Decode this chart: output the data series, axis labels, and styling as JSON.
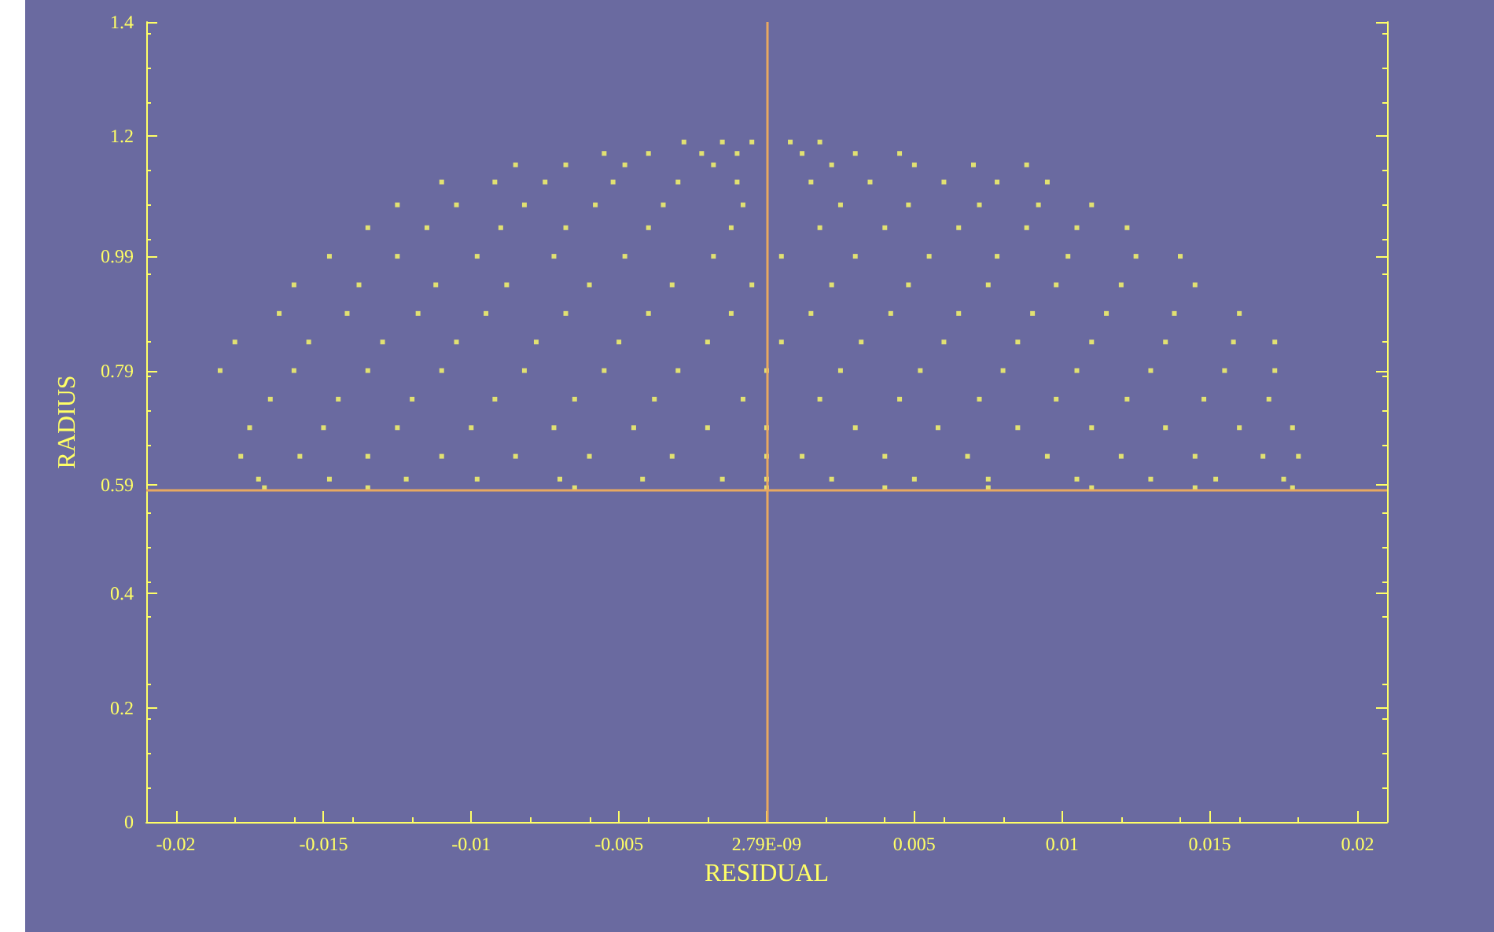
{
  "chart_data": {
    "type": "scatter",
    "xlabel": "RESIDUAL",
    "ylabel": "RADIUS",
    "xlim": [
      -0.021,
      0.021
    ],
    "xticks": [
      -0.02,
      -0.015,
      -0.01,
      -0.005,
      {
        "value": 2.79e-09,
        "label": "2.79E-09"
      },
      0.005,
      0.01,
      0.015,
      0.02
    ],
    "ylim": [
      0,
      1.4
    ],
    "yticks": [
      0,
      0.2,
      0.4,
      0.59,
      0.79,
      0.99,
      1.2,
      1.4
    ],
    "marker": "square",
    "ref_lines": [
      {
        "axis": "x",
        "value": 0,
        "color": "#e8a860"
      },
      {
        "axis": "y",
        "value": 0.58,
        "color": "#e8a860"
      }
    ],
    "series": [
      {
        "color": "#ffff66",
        "x": [
          -0.0028,
          -0.0015,
          -0.0005,
          0.0008,
          0.0018,
          -0.0055,
          -0.004,
          -0.0022,
          -0.001,
          0.0012,
          0.003,
          0.0045,
          -0.0085,
          -0.0068,
          -0.0048,
          -0.0018,
          0.0022,
          0.005,
          0.007,
          0.0088,
          -0.011,
          -0.0092,
          -0.0075,
          -0.0052,
          -0.003,
          -0.001,
          0.0015,
          0.0035,
          0.006,
          0.0078,
          0.0095,
          -0.0125,
          -0.0105,
          -0.0082,
          -0.0058,
          -0.0035,
          -0.0008,
          0.0025,
          0.0048,
          0.0072,
          0.0092,
          0.011,
          -0.0135,
          -0.0115,
          -0.009,
          -0.0068,
          -0.004,
          -0.0012,
          0.0018,
          0.004,
          0.0065,
          0.0088,
          0.0105,
          0.0122,
          -0.0148,
          -0.0125,
          -0.0098,
          -0.0072,
          -0.0048,
          -0.0018,
          0.0005,
          0.003,
          0.0055,
          0.0078,
          0.0102,
          0.0125,
          0.014,
          -0.016,
          -0.0138,
          -0.0112,
          -0.0088,
          -0.006,
          -0.0032,
          -0.0005,
          0.0022,
          0.0048,
          0.0075,
          0.0098,
          0.012,
          0.0145,
          -0.0165,
          -0.0142,
          -0.0118,
          -0.0095,
          -0.0068,
          -0.004,
          -0.0012,
          0.0015,
          0.0042,
          0.0065,
          0.009,
          0.0115,
          0.0138,
          0.016,
          -0.018,
          -0.0155,
          -0.013,
          -0.0105,
          -0.0078,
          -0.005,
          -0.002,
          0.0005,
          0.0032,
          0.006,
          0.0085,
          0.011,
          0.0135,
          0.0158,
          0.0172,
          -0.0185,
          -0.016,
          -0.0135,
          -0.011,
          -0.0082,
          -0.0055,
          -0.003,
          0,
          0.0025,
          0.0052,
          0.008,
          0.0105,
          0.013,
          0.0155,
          0.0172,
          -0.0168,
          -0.0145,
          -0.012,
          -0.0092,
          -0.0065,
          -0.0038,
          -0.0008,
          0.0018,
          0.0045,
          0.0072,
          0.0098,
          0.0122,
          0.0148,
          0.017,
          -0.0175,
          -0.015,
          -0.0125,
          -0.01,
          -0.0072,
          -0.0045,
          -0.002,
          0,
          0.003,
          0.0058,
          0.0085,
          0.011,
          0.0135,
          0.016,
          0.0178,
          -0.0178,
          -0.0158,
          -0.0135,
          -0.011,
          -0.0085,
          -0.006,
          -0.0032,
          0,
          0.0012,
          0.004,
          0.0068,
          0.0095,
          0.012,
          0.0145,
          0.0168,
          0.018,
          -0.0172,
          -0.0148,
          -0.0122,
          -0.0098,
          -0.007,
          -0.0042,
          -0.0015,
          0,
          0.0022,
          0.005,
          0.0075,
          0.0105,
          0.013,
          0.0152,
          0.0175,
          -0.017,
          -0.0135,
          -0.0065,
          0,
          0.004,
          0.0075,
          0.011,
          0.0145,
          0.0178
        ],
        "values": [
          1.19,
          1.19,
          1.19,
          1.19,
          1.19,
          1.17,
          1.17,
          1.17,
          1.17,
          1.17,
          1.17,
          1.17,
          1.15,
          1.15,
          1.15,
          1.15,
          1.15,
          1.15,
          1.15,
          1.15,
          1.12,
          1.12,
          1.12,
          1.12,
          1.12,
          1.12,
          1.12,
          1.12,
          1.12,
          1.12,
          1.12,
          1.08,
          1.08,
          1.08,
          1.08,
          1.08,
          1.08,
          1.08,
          1.08,
          1.08,
          1.08,
          1.08,
          1.04,
          1.04,
          1.04,
          1.04,
          1.04,
          1.04,
          1.04,
          1.04,
          1.04,
          1.04,
          1.04,
          1.04,
          0.99,
          0.99,
          0.99,
          0.99,
          0.99,
          0.99,
          0.99,
          0.99,
          0.99,
          0.99,
          0.99,
          0.99,
          0.99,
          0.94,
          0.94,
          0.94,
          0.94,
          0.94,
          0.94,
          0.94,
          0.94,
          0.94,
          0.94,
          0.94,
          0.94,
          0.94,
          0.89,
          0.89,
          0.89,
          0.89,
          0.89,
          0.89,
          0.89,
          0.89,
          0.89,
          0.89,
          0.89,
          0.89,
          0.89,
          0.89,
          0.84,
          0.84,
          0.84,
          0.84,
          0.84,
          0.84,
          0.84,
          0.84,
          0.84,
          0.84,
          0.84,
          0.84,
          0.84,
          0.84,
          0.84,
          0.79,
          0.79,
          0.79,
          0.79,
          0.79,
          0.79,
          0.79,
          0.79,
          0.79,
          0.79,
          0.79,
          0.79,
          0.79,
          0.79,
          0.79,
          0.74,
          0.74,
          0.74,
          0.74,
          0.74,
          0.74,
          0.74,
          0.74,
          0.74,
          0.74,
          0.74,
          0.74,
          0.74,
          0.74,
          0.69,
          0.69,
          0.69,
          0.69,
          0.69,
          0.69,
          0.69,
          0.69,
          0.69,
          0.69,
          0.69,
          0.69,
          0.69,
          0.69,
          0.69,
          0.64,
          0.64,
          0.64,
          0.64,
          0.64,
          0.64,
          0.64,
          0.64,
          0.64,
          0.64,
          0.64,
          0.64,
          0.64,
          0.64,
          0.64,
          0.64,
          0.6,
          0.6,
          0.6,
          0.6,
          0.6,
          0.6,
          0.6,
          0.6,
          0.6,
          0.6,
          0.6,
          0.6,
          0.6,
          0.6,
          0.6,
          0.585,
          0.585,
          0.585,
          0.585,
          0.585,
          0.585,
          0.585,
          0.585,
          0.585
        ]
      }
    ]
  }
}
